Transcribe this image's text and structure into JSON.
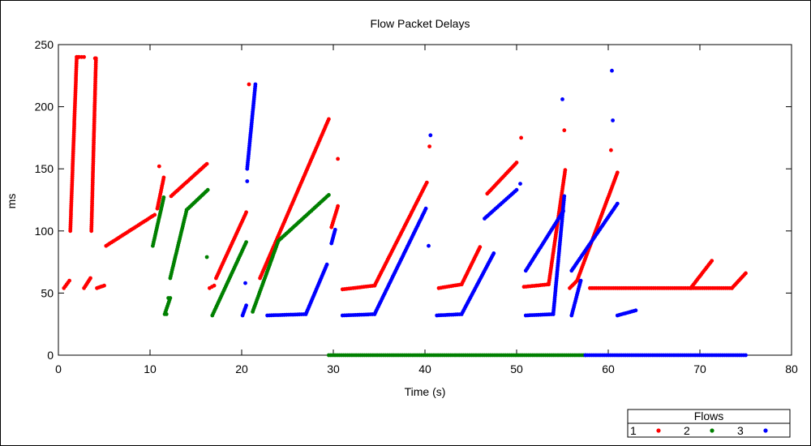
{
  "chart_data": {
    "type": "scatter",
    "title": "Flow Packet Delays",
    "xlabel": "Time (s)",
    "ylabel": "ms",
    "xlim": [
      0,
      80
    ],
    "ylim": [
      0,
      250
    ],
    "xticks": [
      0,
      10,
      20,
      30,
      40,
      50,
      60,
      70,
      80
    ],
    "yticks": [
      0,
      50,
      100,
      150,
      200,
      250
    ],
    "grid": false,
    "legend": {
      "title": "Flows",
      "position": "bottom-right",
      "entries": [
        {
          "label": "1",
          "color": "#ff0000"
        },
        {
          "label": "2",
          "color": "#008000"
        },
        {
          "label": "3",
          "color": "#0000ff"
        }
      ]
    },
    "series": [
      {
        "name": "1",
        "color": "#ff0000",
        "spikes": [
          {
            "x": 2.2,
            "y": 240
          },
          {
            "x": 4.0,
            "y": 239
          },
          {
            "x": 11.0,
            "y": 152
          },
          {
            "x": 20.8,
            "y": 218
          },
          {
            "x": 30.5,
            "y": 158
          },
          {
            "x": 40.5,
            "y": 168
          },
          {
            "x": 50.5,
            "y": 175
          },
          {
            "x": 55.2,
            "y": 181
          },
          {
            "x": 60.3,
            "y": 165
          }
        ],
        "ramps": [
          {
            "x0": 0.6,
            "y0": 54,
            "x1": 1.2,
            "y1": 60
          },
          {
            "x0": 1.3,
            "y0": 100,
            "x1": 2.0,
            "y1": 240
          },
          {
            "x0": 2.0,
            "y0": 240,
            "x1": 2.8,
            "y1": 240
          },
          {
            "x0": 2.8,
            "y0": 54,
            "x1": 3.5,
            "y1": 62
          },
          {
            "x0": 3.6,
            "y0": 100,
            "x1": 4.1,
            "y1": 239
          },
          {
            "x0": 4.2,
            "y0": 54,
            "x1": 5.0,
            "y1": 56
          },
          {
            "x0": 5.2,
            "y0": 88,
            "x1": 10.5,
            "y1": 113
          },
          {
            "x0": 10.8,
            "y0": 118,
            "x1": 11.5,
            "y1": 143
          },
          {
            "x0": 12.3,
            "y0": 128,
            "x1": 16.2,
            "y1": 154
          },
          {
            "x0": 16.5,
            "y0": 54,
            "x1": 17.0,
            "y1": 56
          },
          {
            "x0": 17.2,
            "y0": 62,
            "x1": 20.5,
            "y1": 115
          },
          {
            "x0": 22.0,
            "y0": 62,
            "x1": 29.5,
            "y1": 190
          },
          {
            "x0": 29.8,
            "y0": 103,
            "x1": 30.5,
            "y1": 120
          },
          {
            "x0": 31.0,
            "y0": 53,
            "x1": 34.5,
            "y1": 56
          },
          {
            "x0": 34.5,
            "y0": 56,
            "x1": 40.2,
            "y1": 139
          },
          {
            "x0": 41.5,
            "y0": 54,
            "x1": 44.0,
            "y1": 57
          },
          {
            "x0": 44.0,
            "y0": 57,
            "x1": 46.0,
            "y1": 87
          },
          {
            "x0": 46.8,
            "y0": 130,
            "x1": 50.0,
            "y1": 155
          },
          {
            "x0": 50.8,
            "y0": 55,
            "x1": 53.5,
            "y1": 57
          },
          {
            "x0": 53.5,
            "y0": 57,
            "x1": 55.3,
            "y1": 149
          },
          {
            "x0": 55.8,
            "y0": 54,
            "x1": 56.6,
            "y1": 60
          },
          {
            "x0": 56.6,
            "y0": 60,
            "x1": 61.0,
            "y1": 147
          },
          {
            "x0": 58.0,
            "y0": 54,
            "x1": 73.5,
            "y1": 54
          },
          {
            "x0": 69.0,
            "y0": 54,
            "x1": 71.3,
            "y1": 76
          },
          {
            "x0": 73.5,
            "y0": 54,
            "x1": 75.0,
            "y1": 66
          }
        ]
      },
      {
        "name": "2",
        "color": "#008000",
        "spikes": [
          {
            "x": 11.8,
            "y": 33
          },
          {
            "x": 12.0,
            "y": 46
          },
          {
            "x": 16.2,
            "y": 79
          }
        ],
        "ramps": [
          {
            "x0": 10.3,
            "y0": 88,
            "x1": 11.5,
            "y1": 127
          },
          {
            "x0": 11.6,
            "y0": 33,
            "x1": 12.2,
            "y1": 46
          },
          {
            "x0": 12.2,
            "y0": 62,
            "x1": 14.0,
            "y1": 117
          },
          {
            "x0": 14.0,
            "y0": 117,
            "x1": 16.3,
            "y1": 133
          },
          {
            "x0": 16.8,
            "y0": 32,
            "x1": 20.5,
            "y1": 91
          },
          {
            "x0": 21.2,
            "y0": 35,
            "x1": 24.0,
            "y1": 92
          },
          {
            "x0": 24.0,
            "y0": 92,
            "x1": 29.5,
            "y1": 129
          },
          {
            "x0": 29.5,
            "y0": 0,
            "x1": 57.5,
            "y1": 0
          }
        ]
      },
      {
        "name": "3",
        "color": "#0000ff",
        "spikes": [
          {
            "x": 20.4,
            "y": 58
          },
          {
            "x": 20.6,
            "y": 140
          },
          {
            "x": 40.6,
            "y": 177
          },
          {
            "x": 40.4,
            "y": 88
          },
          {
            "x": 50.4,
            "y": 138
          },
          {
            "x": 55.0,
            "y": 206
          },
          {
            "x": 60.4,
            "y": 229
          },
          {
            "x": 60.5,
            "y": 189
          }
        ],
        "ramps": [
          {
            "x0": 20.1,
            "y0": 32,
            "x1": 20.5,
            "y1": 40
          },
          {
            "x0": 20.6,
            "y0": 150,
            "x1": 21.5,
            "y1": 218
          },
          {
            "x0": 22.8,
            "y0": 32,
            "x1": 27.0,
            "y1": 33
          },
          {
            "x0": 27.0,
            "y0": 33,
            "x1": 29.3,
            "y1": 73
          },
          {
            "x0": 29.8,
            "y0": 90,
            "x1": 30.2,
            "y1": 101
          },
          {
            "x0": 31.0,
            "y0": 32,
            "x1": 34.5,
            "y1": 33
          },
          {
            "x0": 34.5,
            "y0": 33,
            "x1": 40.1,
            "y1": 118
          },
          {
            "x0": 41.3,
            "y0": 32,
            "x1": 44.0,
            "y1": 33
          },
          {
            "x0": 44.0,
            "y0": 33,
            "x1": 47.5,
            "y1": 82
          },
          {
            "x0": 46.5,
            "y0": 110,
            "x1": 50.0,
            "y1": 133
          },
          {
            "x0": 51.0,
            "y0": 32,
            "x1": 54.0,
            "y1": 33
          },
          {
            "x0": 54.0,
            "y0": 33,
            "x1": 55.2,
            "y1": 128
          },
          {
            "x0": 51.0,
            "y0": 68,
            "x1": 55.1,
            "y1": 116
          },
          {
            "x0": 56.0,
            "y0": 32,
            "x1": 57.0,
            "y1": 60
          },
          {
            "x0": 56.0,
            "y0": 68,
            "x1": 61.0,
            "y1": 122
          },
          {
            "x0": 61.0,
            "y0": 32,
            "x1": 63.0,
            "y1": 36
          },
          {
            "x0": 57.5,
            "y0": 0,
            "x1": 75.0,
            "y1": 0
          }
        ]
      }
    ]
  }
}
